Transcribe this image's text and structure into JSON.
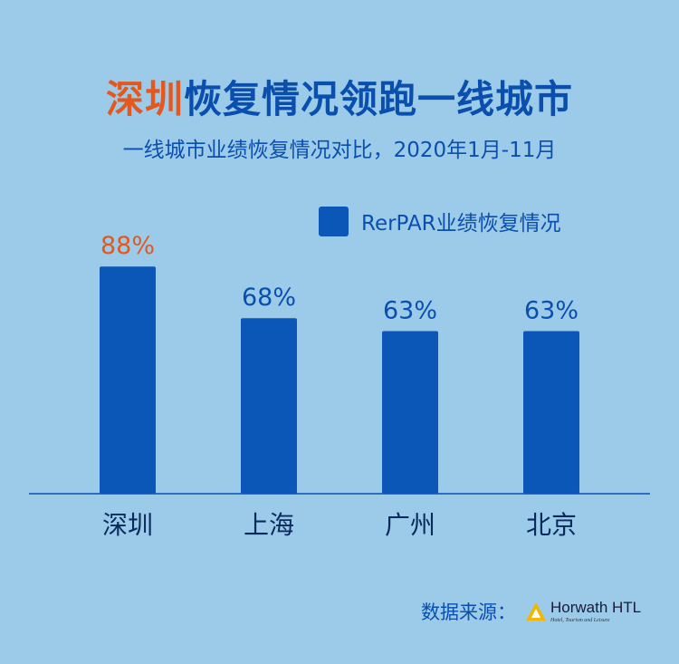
{
  "header": {
    "title_highlight": "深圳",
    "title_rest": "恢复情况领跑一线城市",
    "subtitle": "一线城市业绩恢复情况对比，2020年1月-11月"
  },
  "colors": {
    "bar": "#0b57b8",
    "highlight": "#e2581f",
    "text": "#0a4fae",
    "axis": "#0a4fae"
  },
  "chart_data": {
    "type": "bar",
    "categories": [
      "深圳",
      "上海",
      "广州",
      "北京"
    ],
    "series": [
      {
        "name": "RerPAR业绩恢复情况",
        "values": [
          88,
          68,
          63,
          63
        ]
      }
    ],
    "value_labels": [
      "88%",
      "68%",
      "63%",
      "63%"
    ],
    "highlight_index": 0,
    "ylim": [
      0,
      100
    ],
    "grid": false,
    "legend_position": "top-right"
  },
  "source": {
    "label": "数据来源：",
    "logo_name": "Horwath HTL",
    "logo_tagline": "Hotel, Tourism and Leisure",
    "logo_icon": "horwath-triangle-icon"
  }
}
